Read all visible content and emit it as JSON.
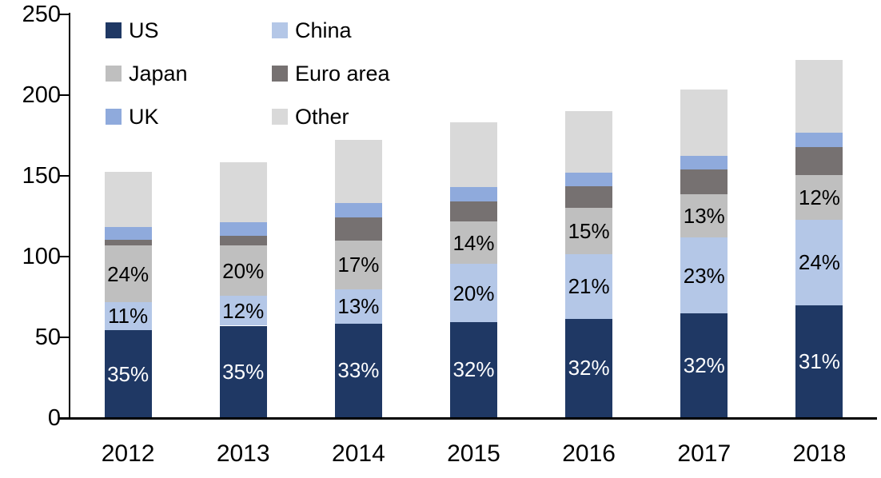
{
  "chart_data": {
    "type": "bar",
    "stacked": true,
    "title": "",
    "xlabel": "",
    "ylabel": "",
    "ylim": [
      0,
      250
    ],
    "yticks": [
      0,
      50,
      100,
      150,
      200,
      250
    ],
    "grid": false,
    "legend_position": "top-left",
    "legend_columns": 2,
    "categories": [
      "2012",
      "2013",
      "2014",
      "2015",
      "2016",
      "2017",
      "2018"
    ],
    "series": [
      {
        "name": "US",
        "color": "#1F3864",
        "values": [
          54.0,
          56.7,
          58.0,
          59.1,
          61.1,
          64.4,
          69.3
        ],
        "labels": [
          "35%",
          "35%",
          "33%",
          "32%",
          "32%",
          "32%",
          "31%"
        ],
        "label_color": "#FFFFFF"
      },
      {
        "name": "China",
        "color": "#B4C7E7",
        "values": [
          17.3,
          18.4,
          21.4,
          35.8,
          40.0,
          46.9,
          53.2
        ],
        "labels": [
          "11%",
          "12%",
          "13%",
          "20%",
          "21%",
          "23%",
          "24%"
        ],
        "label_color": "#000000"
      },
      {
        "name": "Japan",
        "color": "#BFBFBF",
        "values": [
          35.1,
          31.5,
          29.9,
          26.5,
          28.5,
          26.9,
          27.5
        ],
        "labels": [
          "24%",
          "20%",
          "17%",
          "14%",
          "15%",
          "13%",
          "12%"
        ],
        "label_color": "#000000"
      },
      {
        "name": "Euro area",
        "color": "#767171",
        "values": [
          3.6,
          5.6,
          14.6,
          12.3,
          13.5,
          15.1,
          17.5
        ],
        "labels": null,
        "label_color": null
      },
      {
        "name": "UK",
        "color": "#8FAADC",
        "values": [
          7.8,
          8.7,
          8.9,
          8.9,
          8.6,
          8.8,
          8.9
        ],
        "labels": null,
        "label_color": null
      },
      {
        "name": "Other",
        "color": "#D9D9D9",
        "values": [
          34.2,
          37.1,
          39.1,
          40.1,
          37.9,
          41.1,
          44.9
        ],
        "labels": null,
        "label_color": null
      }
    ],
    "totals_approx": [
      152.0,
      158.0,
      171.9,
      182.7,
      189.6,
      203.2,
      221.3
    ]
  }
}
